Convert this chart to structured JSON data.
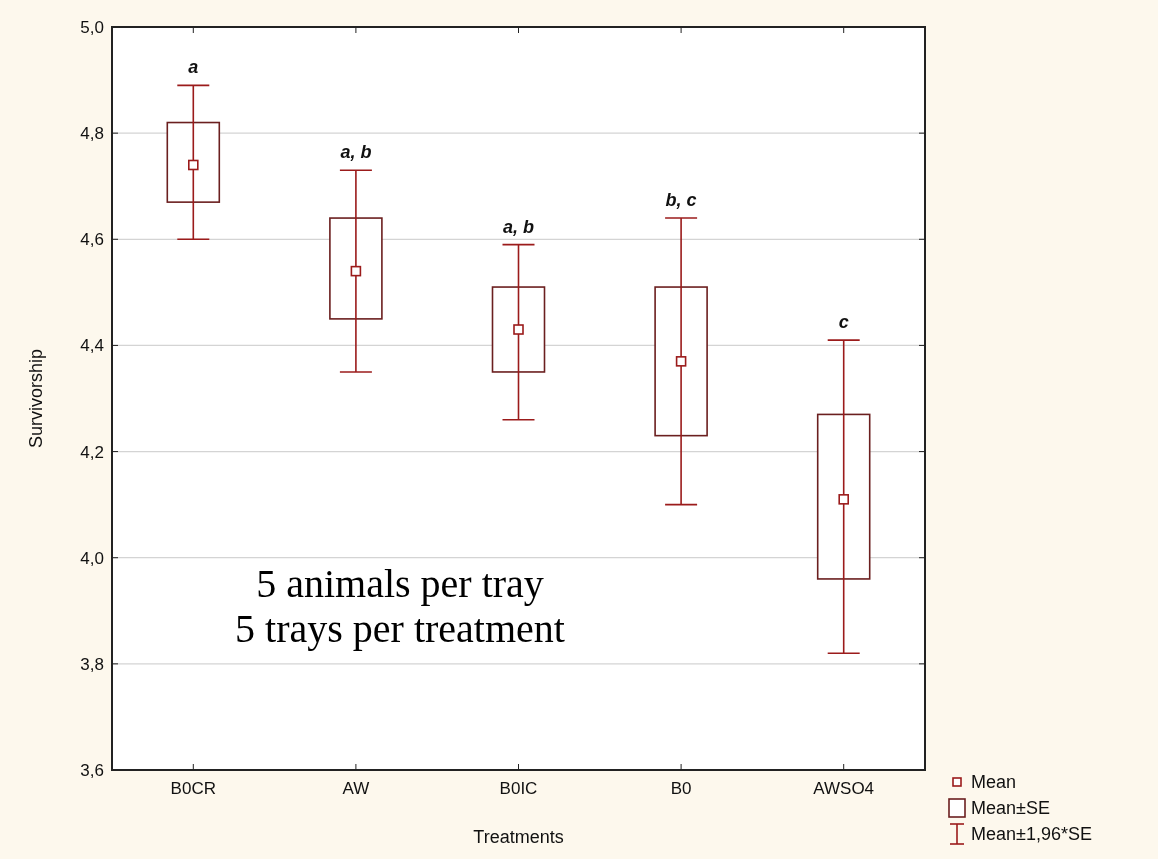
{
  "chart_data": {
    "type": "bar",
    "xlabel": "Treatments",
    "ylabel": "Survivorship",
    "categories": [
      "B0CR",
      "AW",
      "B0IC",
      "B0",
      "AWSO4"
    ],
    "ylim": [
      3.6,
      5.0
    ],
    "yticks": [
      {
        "value": 3.6,
        "label": "3,6"
      },
      {
        "value": 3.8,
        "label": "3,8"
      },
      {
        "value": 4.0,
        "label": "4,0"
      },
      {
        "value": 4.2,
        "label": "4,2"
      },
      {
        "value": 4.4,
        "label": "4,4"
      },
      {
        "value": 4.6,
        "label": "4,6"
      },
      {
        "value": 4.8,
        "label": "4,8"
      },
      {
        "value": 5.0,
        "label": "5,0"
      }
    ],
    "grid": "y",
    "legend": "bottom right",
    "series": [
      {
        "name": "Mean±SE",
        "color": "#6b1f1f",
        "base": [
          4.67,
          4.45,
          4.35,
          4.23,
          3.96
        ],
        "values": [
          0.15,
          0.19,
          0.16,
          0.28,
          0.31
        ]
      },
      {
        "name": "Mean",
        "type": "scatter",
        "marker": "square",
        "color": "#9b1b1b",
        "values": [
          4.74,
          4.54,
          4.43,
          4.37,
          4.11
        ]
      },
      {
        "name": "Mean±1,96*SE",
        "color": "#9b1b1b",
        "base": [
          4.6,
          4.35,
          4.26,
          4.1,
          3.82
        ],
        "values": [
          0.29,
          0.38,
          0.33,
          0.54,
          0.59
        ]
      }
    ],
    "annotations": [
      {
        "text": "a",
        "x": "B0CR",
        "y": 4.89
      },
      {
        "text": "a, b",
        "x": "AW",
        "y": 4.73
      },
      {
        "text": "a, b",
        "x": "B0IC",
        "y": 4.59
      },
      {
        "text": "b, c",
        "x": "B0",
        "y": 4.64
      },
      {
        "text": "c",
        "x": "AWSO4",
        "y": 4.41
      },
      "5 animals per tray",
      "5 trays per treatment"
    ]
  }
}
